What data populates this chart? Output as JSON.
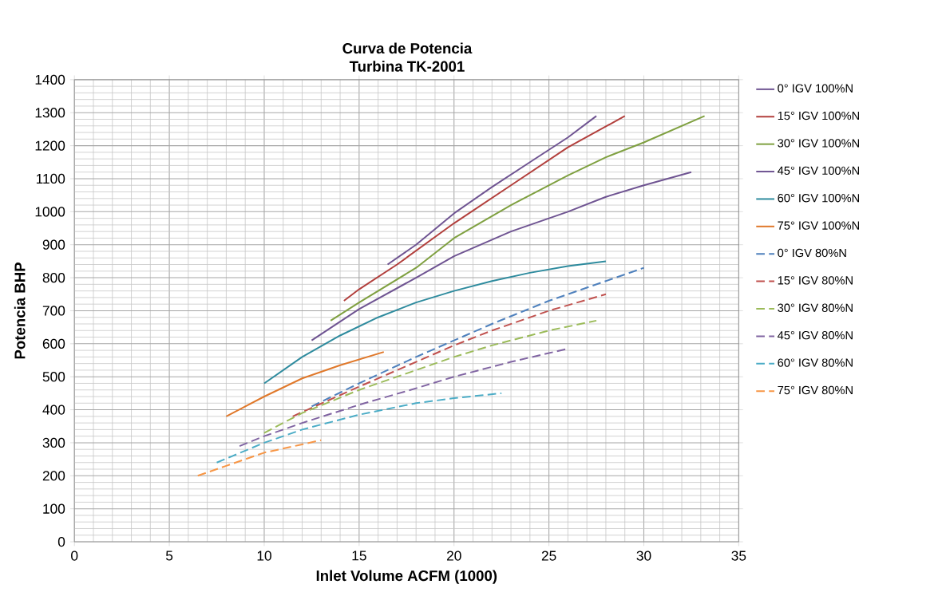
{
  "chart_data": {
    "type": "line",
    "title": "Curva de Potencia",
    "subtitle": "Turbina TK-2001",
    "xlabel": "Inlet  Volume ACFM (1000)",
    "ylabel": "Potencia BHP",
    "xlim": [
      0,
      35
    ],
    "ylim": [
      0,
      1400
    ],
    "xticks": [
      0,
      5,
      10,
      15,
      20,
      25,
      30,
      35
    ],
    "yticks": [
      0,
      100,
      200,
      300,
      400,
      500,
      600,
      700,
      800,
      900,
      1000,
      1100,
      1200,
      1300,
      1400
    ],
    "grid": true,
    "legend": "right",
    "marker": "none",
    "line_style": "solid",
    "series": [
      {
        "name": "0° IGV 100%N",
        "color": "#6f5492",
        "x": [
          16.5,
          18,
          20,
          22,
          24,
          26,
          27.5
        ],
        "values": [
          840,
          900,
          995,
          1075,
          1150,
          1225,
          1290
        ]
      },
      {
        "name": "15° IGV 100%N",
        "color": "#b23f3c",
        "x": [
          14.2,
          15,
          17,
          20,
          23,
          26,
          29
        ],
        "values": [
          730,
          765,
          840,
          965,
          1080,
          1195,
          1290
        ]
      },
      {
        "name": "30° IGV 100%N",
        "color": "#7fa040",
        "x": [
          13.5,
          15,
          18,
          20,
          23,
          26,
          28,
          30,
          33.2
        ],
        "values": [
          670,
          725,
          830,
          920,
          1020,
          1110,
          1165,
          1210,
          1290
        ]
      },
      {
        "name": "45° IGV 100%N",
        "color": "#6f5492",
        "x": [
          12.5,
          15,
          18,
          20,
          23,
          26,
          28,
          30,
          32.5
        ],
        "values": [
          610,
          705,
          800,
          865,
          940,
          1000,
          1045,
          1080,
          1120
        ]
      },
      {
        "name": "60° IGV 100%N",
        "color": "#2e8b9e",
        "x": [
          10,
          12,
          14,
          16,
          18,
          20,
          22,
          24,
          26,
          28
        ],
        "values": [
          480,
          560,
          625,
          680,
          725,
          760,
          790,
          815,
          835,
          850
        ]
      },
      {
        "name": "75° IGV 100%N",
        "color": "#e0782a",
        "x": [
          8,
          10,
          12,
          14,
          16.3
        ],
        "values": [
          380,
          440,
          495,
          535,
          575
        ]
      },
      {
        "name": "0° IGV 80%N",
        "color": "#4f81bd",
        "line_style": "dashed",
        "x": [
          12.5,
          15,
          18,
          20,
          22,
          25,
          28,
          30
        ],
        "values": [
          410,
          480,
          560,
          610,
          660,
          730,
          790,
          830
        ]
      },
      {
        "name": "15° IGV 80%N",
        "color": "#c0504d",
        "line_style": "dashed",
        "x": [
          11.5,
          15,
          18,
          20,
          22,
          25,
          28
        ],
        "values": [
          380,
          470,
          545,
          595,
          640,
          700,
          750
        ]
      },
      {
        "name": "30° IGV 80%N",
        "color": "#9bbb59",
        "line_style": "dashed",
        "x": [
          10,
          12,
          15,
          18,
          20,
          22,
          25,
          27.5
        ],
        "values": [
          330,
          390,
          460,
          520,
          560,
          595,
          640,
          670
        ]
      },
      {
        "name": "45° IGV 80%N",
        "color": "#8064a2",
        "line_style": "dashed",
        "x": [
          8.7,
          10,
          12,
          15,
          18,
          20,
          23,
          26
        ],
        "values": [
          290,
          320,
          360,
          415,
          465,
          500,
          545,
          585
        ]
      },
      {
        "name": "60° IGV 80%N",
        "color": "#4bacc6",
        "line_style": "dashed",
        "x": [
          7.5,
          10,
          12,
          15,
          18,
          20,
          22.5
        ],
        "values": [
          240,
          300,
          340,
          385,
          420,
          435,
          450
        ]
      },
      {
        "name": "75° IGV 80%N",
        "color": "#f79646",
        "line_style": "dashed",
        "x": [
          6.5,
          8,
          10,
          12,
          13
        ],
        "values": [
          200,
          230,
          270,
          295,
          308
        ]
      }
    ]
  }
}
